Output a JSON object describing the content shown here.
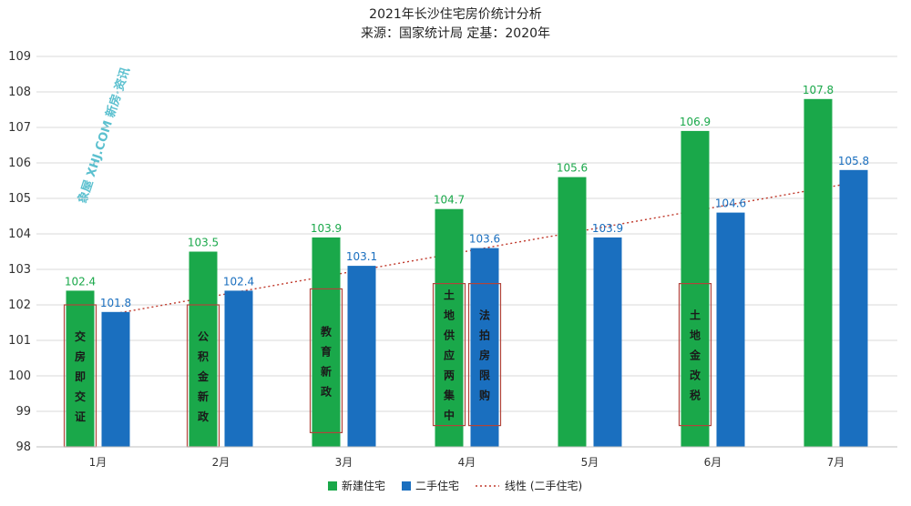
{
  "chart_data": {
    "type": "bar",
    "title": "2021年长沙住宅房价统计分析",
    "subtitle": "来源：国家统计局 定基：2020年",
    "categories": [
      "1月",
      "2月",
      "3月",
      "4月",
      "5月",
      "6月",
      "7月"
    ],
    "series": [
      {
        "name": "新建住宅",
        "color": "#1aa84a",
        "values": [
          102.4,
          103.5,
          103.9,
          104.7,
          105.6,
          106.9,
          107.8
        ]
      },
      {
        "name": "二手住宅",
        "color": "#1a6fbf",
        "values": [
          101.8,
          102.4,
          103.1,
          103.6,
          103.9,
          104.6,
          105.8
        ]
      }
    ],
    "trendline": {
      "name": "线性 (二手住宅)",
      "type": "linear",
      "of_series": "二手住宅",
      "color": "#c0392b",
      "style": "dotted"
    },
    "ylim": [
      98,
      109
    ],
    "yticks": [
      98,
      99,
      100,
      101,
      102,
      103,
      104,
      105,
      106,
      107,
      108,
      109
    ],
    "grid": true,
    "legend_position": "bottom",
    "xlabel": "",
    "ylabel": "",
    "annotations": [
      {
        "month": "1月",
        "series": "新建住宅",
        "text": "交房即交证",
        "from": 98,
        "to": 102
      },
      {
        "month": "2月",
        "series": "新建住宅",
        "text": "公积金新政",
        "from": 98,
        "to": 102
      },
      {
        "month": "3月",
        "series": "新建住宅",
        "text": "教育新政",
        "from": 98.4,
        "to": 102.45
      },
      {
        "month": "4月",
        "series": "新建住宅",
        "text": "土地供应两集中",
        "from": 98.6,
        "to": 102.6
      },
      {
        "month": "4月",
        "series": "二手住宅",
        "text": "法拍房限购",
        "from": 98.6,
        "to": 102.6
      },
      {
        "month": "6月",
        "series": "新建住宅",
        "text": "土地金改税",
        "from": 98.6,
        "to": 102.6
      }
    ]
  },
  "watermark": {
    "text": "象屋 XHJ.COM 新房·资讯"
  }
}
